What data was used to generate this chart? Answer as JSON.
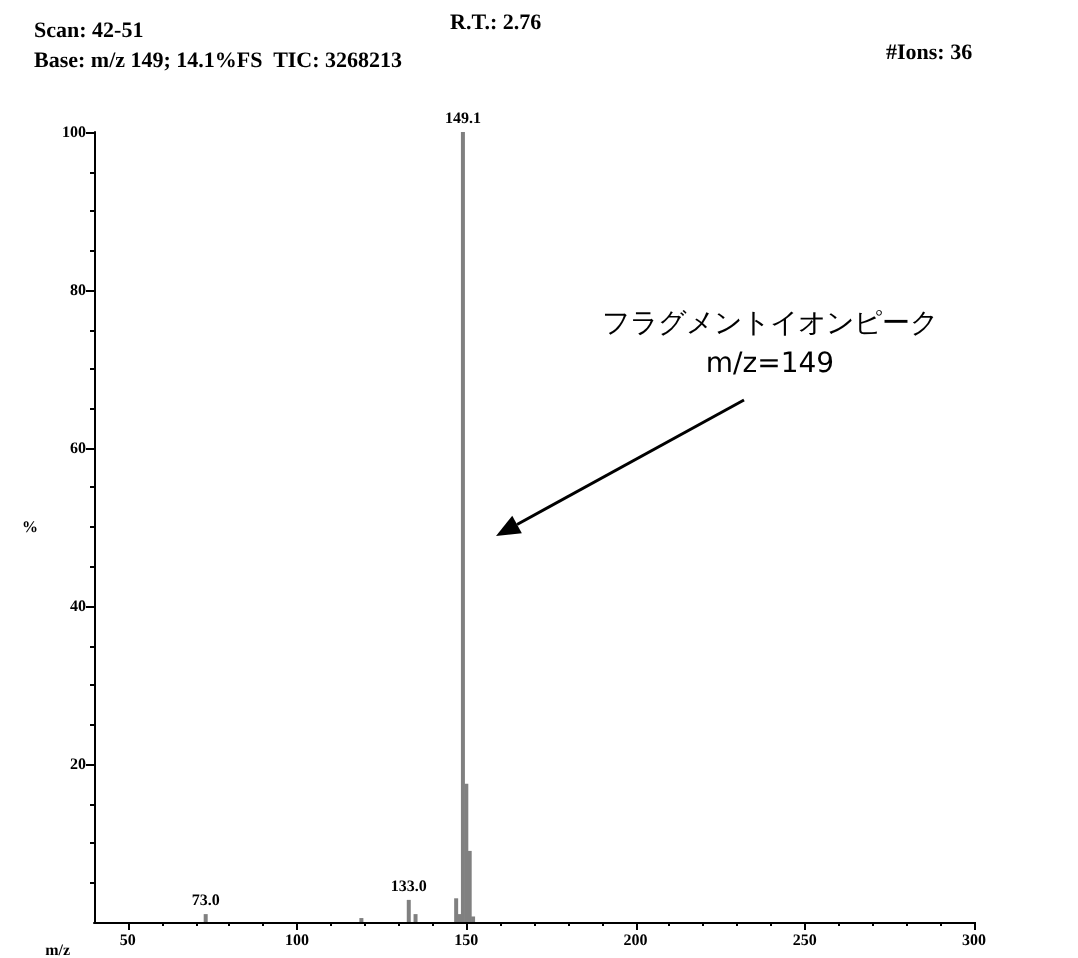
{
  "chart_data": {
    "type": "bar",
    "title": "Scan: 42-51",
    "subtitle": "Base: m/z 149; 14.1%FS  TIC: 3268213",
    "xlabel": "m/z",
    "ylabel": "%",
    "x": [
      73,
      119,
      133,
      135,
      147,
      148,
      149,
      150,
      151,
      152
    ],
    "values": [
      1,
      0.5,
      2.8,
      1,
      3,
      1,
      100,
      17.5,
      9,
      0.7
    ],
    "color": "#808080",
    "xlim": [
      40,
      300
    ],
    "xticks": [
      50,
      100,
      150,
      200,
      250,
      300
    ],
    "ylim": [
      0,
      100
    ],
    "yticks": [
      20,
      40,
      60,
      80,
      100
    ],
    "grid": false,
    "annotations": [
      "R.T.: 2.76",
      "#Ions: 36",
      "フラグメントイオンピーク\nm/z=149",
      {
        "text": "149.1",
        "x": 149,
        "y": 100
      },
      {
        "text": "133.0",
        "x": 133,
        "y": 2.8
      },
      {
        "text": "73.0",
        "x": 73,
        "y": 1
      }
    ]
  }
}
